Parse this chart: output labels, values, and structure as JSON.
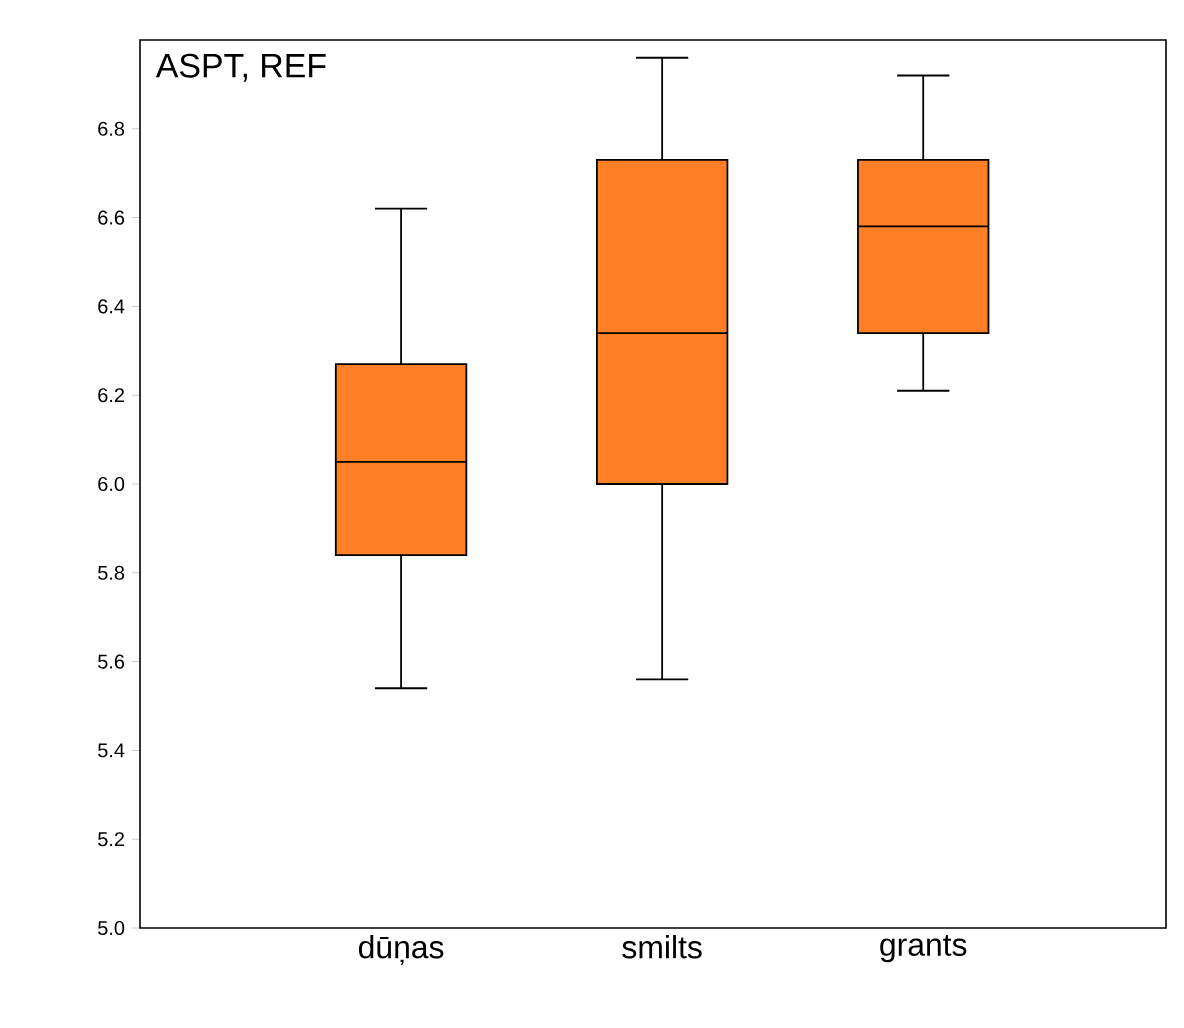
{
  "chart_data": {
    "type": "box",
    "title": "ASPT, REF",
    "categories": [
      "dūņas",
      "smilts",
      "grants"
    ],
    "color": "#ff7f27",
    "boxes": [
      {
        "low": 5.54,
        "q1": 5.84,
        "median": 6.05,
        "q3": 6.27,
        "high": 6.62
      },
      {
        "low": 5.56,
        "q1": 6.0,
        "median": 6.34,
        "q3": 6.73,
        "high": 6.96
      },
      {
        "low": 6.21,
        "q1": 6.34,
        "median": 6.58,
        "q3": 6.73,
        "high": 6.92
      }
    ],
    "ylim": [
      5.0,
      7.0
    ],
    "yticks": [
      {
        "value": 5.0,
        "label": "5.0"
      },
      {
        "value": 5.2,
        "label": "5.2"
      },
      {
        "value": 5.4,
        "label": "5.4"
      },
      {
        "value": 5.6,
        "label": "5.6"
      },
      {
        "value": 5.8,
        "label": "5.8"
      },
      {
        "value": 6.0,
        "label": "6.0"
      },
      {
        "value": 6.2,
        "label": "6.2"
      },
      {
        "value": 6.4,
        "label": "6.4"
      },
      {
        "value": 6.6,
        "label": "6.6"
      },
      {
        "value": 6.8,
        "label": "6.8"
      }
    ],
    "grid": false
  }
}
